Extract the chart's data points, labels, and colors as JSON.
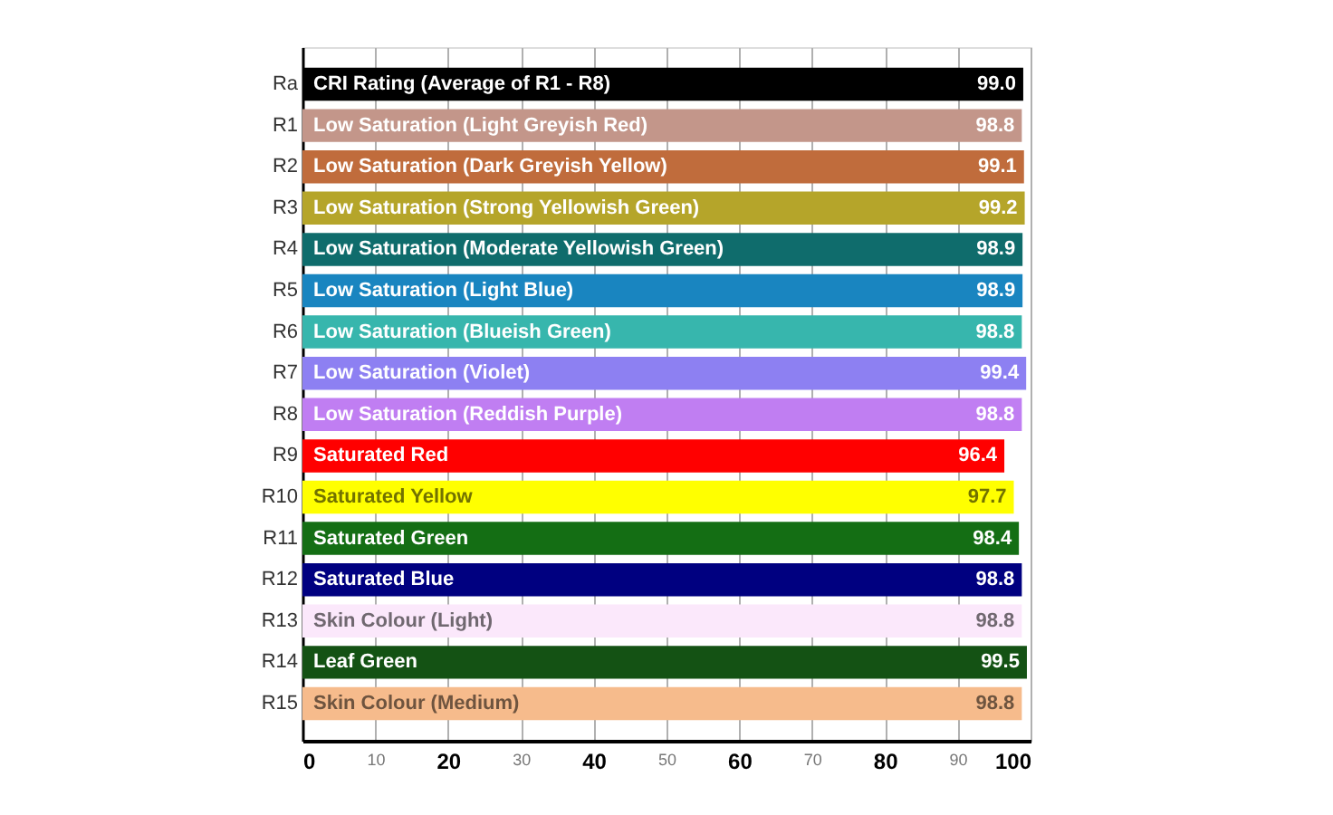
{
  "chart_data": {
    "type": "bar",
    "orientation": "horizontal",
    "categories": [
      "Ra",
      "R1",
      "R2",
      "R3",
      "R4",
      "R5",
      "R6",
      "R7",
      "R8",
      "R9",
      "R10",
      "R11",
      "R12",
      "R13",
      "R14",
      "R15"
    ],
    "values": [
      99.0,
      98.8,
      99.1,
      99.2,
      98.9,
      98.9,
      98.8,
      99.4,
      98.8,
      96.4,
      97.7,
      98.4,
      98.8,
      98.8,
      99.5,
      98.8
    ],
    "value_labels": [
      "99.0",
      "98.8",
      "99.1",
      "99.2",
      "98.9",
      "98.9",
      "98.8",
      "99.4",
      "98.8",
      "96.4",
      "97.7",
      "98.4",
      "98.8",
      "98.8",
      "99.5",
      "98.8"
    ],
    "colors": [
      "#000000",
      "#c3968a",
      "#c06c3c",
      "#b5a52a",
      "#0f6c6c",
      "#1985c0",
      "#37b6ad",
      "#8d80f2",
      "#c07ef2",
      "#ff0000",
      "#ffff00",
      "#146e14",
      "#000080",
      "#fbe8fb",
      "#145214",
      "#f6bb8c"
    ],
    "annotations": [
      {
        "text": "CRI Rating (Average of R1 - R8)",
        "y": "Ra"
      },
      {
        "text": "Low Saturation (Light Greyish Red)",
        "y": "R1"
      },
      {
        "text": "Low Saturation (Dark Greyish Yellow)",
        "y": "R2"
      },
      {
        "text": "Low Saturation (Strong Yellowish Green)",
        "y": "R3"
      },
      {
        "text": "Low Saturation (Moderate Yellowish Green)",
        "y": "R4"
      },
      {
        "text": "Low Saturation (Light Blue)",
        "y": "R5"
      },
      {
        "text": "Low Saturation (Blueish Green)",
        "y": "R6"
      },
      {
        "text": "Low Saturation (Violet)",
        "y": "R7"
      },
      {
        "text": "Low Saturation (Reddish Purple)",
        "y": "R8"
      },
      {
        "text": "Saturated Red",
        "y": "R9"
      },
      {
        "text": "Saturated Yellow",
        "y": "R10"
      },
      {
        "text": "Saturated Green",
        "y": "R11"
      },
      {
        "text": "Saturated Blue",
        "y": "R12"
      },
      {
        "text": "Skin Colour (Light)",
        "y": "R13"
      },
      {
        "text": "Leaf Green",
        "y": "R14"
      },
      {
        "text": "Skin Colour (Medium)",
        "y": "R15"
      }
    ],
    "xlim": [
      0,
      100
    ],
    "xticks": [
      0,
      10,
      20,
      30,
      40,
      50,
      60,
      70,
      80,
      90,
      100
    ],
    "grid": "x"
  }
}
